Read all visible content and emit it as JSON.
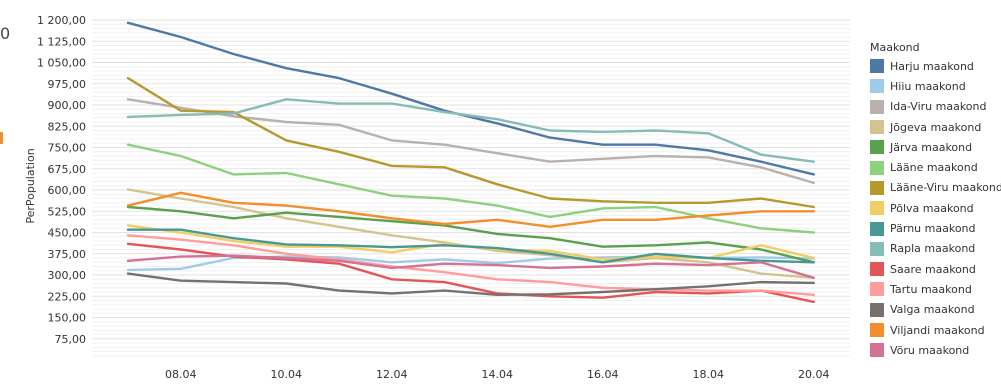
{
  "fragments": {
    "cut_text": "0"
  },
  "chart_data": {
    "type": "line",
    "title": "",
    "xlabel": "",
    "ylabel": "PerPopulation",
    "legend_title": "Maakond",
    "legend_position": "right",
    "grid": true,
    "ylim": [
      0,
      1200
    ],
    "x": [
      "07.04",
      "08.04",
      "09.04",
      "10.04",
      "11.04",
      "12.04",
      "13.04",
      "14.04",
      "15.04",
      "16.04",
      "17.04",
      "18.04",
      "19.04",
      "20.04"
    ],
    "x_tick_labels": [
      "08.04",
      "10.04",
      "12.04",
      "14.04",
      "16.04",
      "18.04",
      "20.04"
    ],
    "y_tick_labels": [
      "75,00",
      "150,00",
      "225,00",
      "300,00",
      "375,00",
      "450,00",
      "525,00",
      "600,00",
      "675,00",
      "750,00",
      "825,00",
      "900,00",
      "975,00",
      "1 050,00",
      "1 125,00",
      "1 200,00"
    ],
    "series": [
      {
        "name": "Harju maakond",
        "color": "#4e79a7",
        "values": [
          1190,
          1140,
          1080,
          1030,
          995,
          940,
          880,
          835,
          785,
          760,
          760,
          740,
          700,
          655
        ]
      },
      {
        "name": "Hiiu maakond",
        "color": "#a0cbe8",
        "values": [
          318,
          322,
          360,
          365,
          362,
          345,
          355,
          342,
          358,
          362,
          365,
          360,
          362,
          358
        ]
      },
      {
        "name": "Ida-Viru maakond",
        "color": "#bab0ac",
        "values": [
          920,
          890,
          860,
          840,
          830,
          775,
          760,
          730,
          700,
          710,
          720,
          715,
          680,
          625
        ]
      },
      {
        "name": "Jõgeva maakond",
        "color": "#d4c38d",
        "values": [
          602,
          570,
          540,
          500,
          470,
          440,
          415,
          385,
          370,
          345,
          360,
          345,
          305,
          290
        ]
      },
      {
        "name": "Järva maakond",
        "color": "#59a14f",
        "values": [
          540,
          525,
          500,
          520,
          505,
          490,
          475,
          445,
          430,
          400,
          405,
          415,
          390,
          345
        ]
      },
      {
        "name": "Lääne maakond",
        "color": "#8cd17d",
        "values": [
          760,
          720,
          655,
          660,
          620,
          580,
          570,
          545,
          505,
          535,
          540,
          500,
          465,
          450
        ]
      },
      {
        "name": "Lääne-Viru maakond",
        "color": "#b6992d",
        "values": [
          995,
          880,
          875,
          775,
          735,
          685,
          680,
          620,
          570,
          560,
          555,
          555,
          570,
          540
        ]
      },
      {
        "name": "Põlva maakond",
        "color": "#f1ce63",
        "values": [
          475,
          450,
          420,
          400,
          400,
          380,
          410,
          390,
          385,
          355,
          365,
          360,
          405,
          360
        ]
      },
      {
        "name": "Pärnu maakond",
        "color": "#499894",
        "values": [
          460,
          460,
          430,
          408,
          405,
          398,
          405,
          395,
          375,
          345,
          375,
          360,
          350,
          345
        ]
      },
      {
        "name": "Rapla maakond",
        "color": "#86bcb6",
        "values": [
          858,
          865,
          870,
          920,
          905,
          905,
          875,
          850,
          810,
          805,
          810,
          800,
          725,
          700
        ]
      },
      {
        "name": "Saare maakond",
        "color": "#e15759",
        "values": [
          410,
          390,
          365,
          355,
          340,
          285,
          275,
          235,
          225,
          220,
          240,
          235,
          245,
          205
        ]
      },
      {
        "name": "Tartu maakond",
        "color": "#ff9d9a",
        "values": [
          440,
          425,
          405,
          375,
          355,
          330,
          310,
          285,
          275,
          255,
          250,
          245,
          245,
          230
        ]
      },
      {
        "name": "Valga maakond",
        "color": "#79706e",
        "values": [
          305,
          280,
          275,
          270,
          245,
          235,
          245,
          230,
          232,
          240,
          250,
          260,
          275,
          272
        ]
      },
      {
        "name": "Viljandi maakond",
        "color": "#f28e2b",
        "values": [
          545,
          590,
          555,
          545,
          525,
          500,
          480,
          495,
          470,
          495,
          495,
          510,
          525,
          525
        ]
      },
      {
        "name": "Võru maakond",
        "color": "#d37295",
        "values": [
          350,
          365,
          368,
          360,
          350,
          325,
          340,
          335,
          325,
          330,
          340,
          335,
          345,
          290
        ]
      }
    ]
  }
}
